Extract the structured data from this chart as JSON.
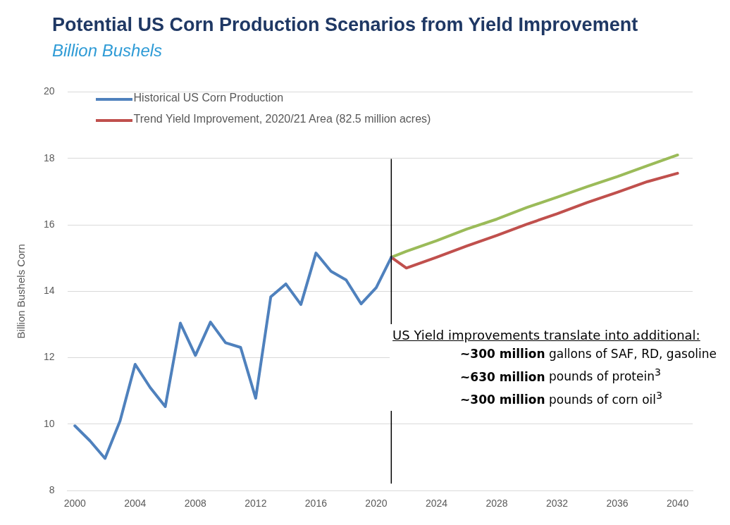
{
  "chart_data": {
    "type": "line",
    "title": "Potential US Corn Production Scenarios from Yield Improvement",
    "subtitle": "Billion Bushels",
    "ylabel": "Billion Bushels Corn",
    "xlim": [
      1999.5,
      2041
    ],
    "xticks": [
      2000,
      2004,
      2008,
      2012,
      2016,
      2020,
      2024,
      2028,
      2032,
      2036,
      2040
    ],
    "ylim": [
      8,
      20
    ],
    "yticks": [
      8,
      10,
      12,
      14,
      16,
      18,
      20
    ],
    "grid": "y",
    "legend": "top left",
    "marker": "none",
    "line_style": "solid",
    "series": [
      {
        "name": "Historical US Corn Production",
        "color": "#4f81bd",
        "x": [
          2000,
          2001,
          2002,
          2003,
          2004,
          2005,
          2006,
          2007,
          2008,
          2009,
          2010,
          2011,
          2012,
          2013,
          2014,
          2015,
          2016,
          2017,
          2018,
          2019,
          2020,
          2021
        ],
        "values": [
          9.95,
          9.5,
          8.97,
          10.1,
          11.8,
          11.1,
          10.53,
          13.04,
          12.07,
          13.07,
          12.45,
          12.31,
          10.78,
          13.83,
          14.22,
          13.6,
          15.15,
          14.6,
          14.34,
          13.62,
          14.11,
          15.02
        ]
      },
      {
        "name": "Trend Yield Improvement, 2020/21 Area (82.5 million acres)",
        "color": "#c0504d",
        "x": [
          2021,
          2022,
          2024,
          2026,
          2028,
          2030,
          2032,
          2034,
          2036,
          2038,
          2040
        ],
        "values": [
          15.02,
          14.7,
          15.02,
          15.36,
          15.68,
          16.02,
          16.33,
          16.67,
          16.98,
          17.3,
          17.55
        ]
      },
      {
        "color": "#9bbb59",
        "x": [
          2021,
          2022,
          2024,
          2026,
          2028,
          2030,
          2032,
          2034,
          2036,
          2038,
          2040
        ],
        "values": [
          15.02,
          15.2,
          15.52,
          15.87,
          16.17,
          16.52,
          16.83,
          17.15,
          17.45,
          17.78,
          18.1
        ]
      }
    ],
    "ref_lines": [
      {
        "axis": "x",
        "value": 2021,
        "color": "#000000"
      }
    ],
    "annotations": [
      "US Yield improvements translate into additional:",
      "~300 million gallons of SAF, RD, gasoline",
      "~630 million pounds of protein$^{3}$",
      "~300 million pounds of corn oil$^{3}$"
    ]
  }
}
